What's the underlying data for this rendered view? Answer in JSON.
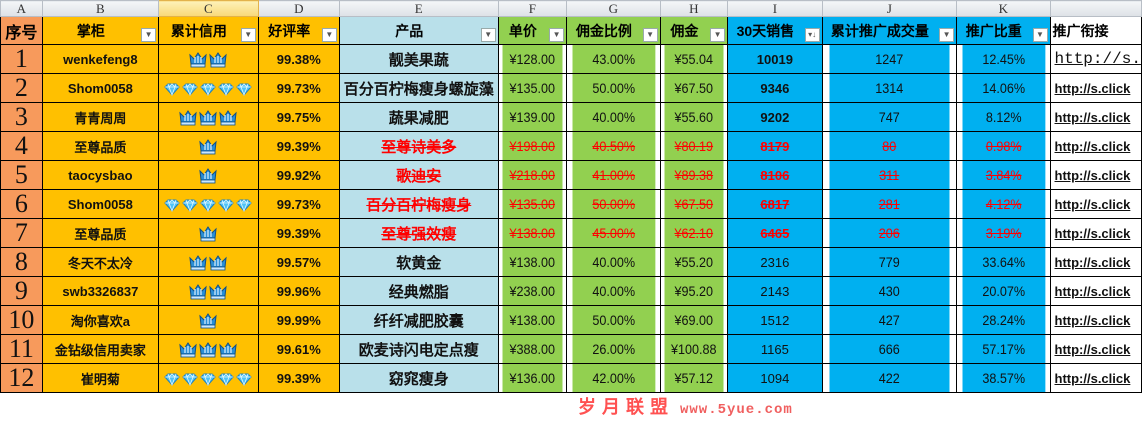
{
  "column_letters": [
    "A",
    "B",
    "C",
    "D",
    "E",
    "F",
    "G",
    "H",
    "I",
    "J",
    "K",
    ""
  ],
  "headers": [
    "序号",
    "掌柜",
    "累计信用",
    "好评率",
    "产品",
    "单价",
    "佣金比例",
    "佣金",
    "30天销售",
    "累计推广成交量",
    "推广比重",
    "推广衔接"
  ],
  "filter_icons": [
    "",
    "filter-dropdown",
    "filter-dropdown",
    "filter-dropdown",
    "filter-dropdown",
    "filter-dropdown",
    "filter-dropdown",
    "filter-dropdown",
    "sort-descending-filter",
    "filter-dropdown",
    "filter-dropdown",
    ""
  ],
  "colors": {
    "seq": "#f79a5c",
    "shop": "#ffc000",
    "product": "#b9e0ea",
    "price": "#92d050",
    "sales": "#00b0f0",
    "struck_text": "#ff0000",
    "link": "#0000ff"
  },
  "rows": [
    {
      "seq": "1",
      "shop": "wenkefeng8",
      "credit": {
        "icon": "crown",
        "count": 2
      },
      "rating": "99.38%",
      "product": "靓美果蔬",
      "price": "¥128.00",
      "rate": "43.00%",
      "commission": "¥55.04",
      "sales30": "10019",
      "promo": "1247",
      "share": "12.45%",
      "link": "http://s.",
      "struck": false
    },
    {
      "seq": "2",
      "shop": "Shom0058",
      "credit": {
        "icon": "diamond",
        "count": 5
      },
      "rating": "99.73%",
      "product": "百分百柠梅瘦身螺旋藻",
      "price": "¥135.00",
      "rate": "50.00%",
      "commission": "¥67.50",
      "sales30": "9346",
      "promo": "1314",
      "share": "14.06%",
      "link": "http://s.click",
      "struck": false
    },
    {
      "seq": "3",
      "shop": "青青周周",
      "credit": {
        "icon": "crown",
        "count": 3
      },
      "rating": "99.75%",
      "product": "蔬果减肥",
      "price": "¥139.00",
      "rate": "40.00%",
      "commission": "¥55.60",
      "sales30": "9202",
      "promo": "747",
      "share": "8.12%",
      "link": "http://s.click",
      "struck": false
    },
    {
      "seq": "4",
      "shop": "至尊品质",
      "credit": {
        "icon": "crown",
        "count": 1
      },
      "rating": "99.39%",
      "product": "至尊诗美多",
      "price": "¥198.00",
      "rate": "40.50%",
      "commission": "¥80.19",
      "sales30": "8179",
      "promo": "80",
      "share": "0.98%",
      "link": "http://s.click",
      "struck": true
    },
    {
      "seq": "5",
      "shop": "taocysbao",
      "credit": {
        "icon": "crown",
        "count": 1
      },
      "rating": "99.92%",
      "product": "歌迪安",
      "price": "¥218.00",
      "rate": "41.00%",
      "commission": "¥89.38",
      "sales30": "8106",
      "promo": "311",
      "share": "3.84%",
      "link": "http://s.click",
      "struck": true
    },
    {
      "seq": "6",
      "shop": "Shom0058",
      "credit": {
        "icon": "diamond",
        "count": 5
      },
      "rating": "99.73%",
      "product": "百分百柠梅瘦身",
      "price": "¥135.00",
      "rate": "50.00%",
      "commission": "¥67.50",
      "sales30": "6817",
      "promo": "281",
      "share": "4.12%",
      "link": "http://s.click",
      "struck": true
    },
    {
      "seq": "7",
      "shop": "至尊品质",
      "credit": {
        "icon": "crown",
        "count": 1
      },
      "rating": "99.39%",
      "product": "至尊强效瘦",
      "price": "¥138.00",
      "rate": "45.00%",
      "commission": "¥62.10",
      "sales30": "6465",
      "promo": "206",
      "share": "3.19%",
      "link": "http://s.click",
      "struck": true
    },
    {
      "seq": "8",
      "shop": "冬天不太冷",
      "credit": {
        "icon": "crown",
        "count": 2
      },
      "rating": "99.57%",
      "product": "软黄金",
      "price": "¥138.00",
      "rate": "40.00%",
      "commission": "¥55.20",
      "sales30": "2316",
      "promo": "779",
      "share": "33.64%",
      "link": "http://s.click",
      "struck": false
    },
    {
      "seq": "9",
      "shop": "swb3326837",
      "credit": {
        "icon": "crown",
        "count": 2
      },
      "rating": "99.96%",
      "product": "经典燃脂",
      "price": "¥238.00",
      "rate": "40.00%",
      "commission": "¥95.20",
      "sales30": "2143",
      "promo": "430",
      "share": "20.07%",
      "link": "http://s.click",
      "struck": false
    },
    {
      "seq": "10",
      "shop": "淘你喜欢a",
      "credit": {
        "icon": "crown",
        "count": 1
      },
      "rating": "99.99%",
      "product": "纤纤减肥胶囊",
      "price": "¥138.00",
      "rate": "50.00%",
      "commission": "¥69.00",
      "sales30": "1512",
      "promo": "427",
      "share": "28.24%",
      "link": "http://s.click",
      "struck": false
    },
    {
      "seq": "11",
      "shop": "金钻级信用卖家",
      "credit": {
        "icon": "crown",
        "count": 3
      },
      "rating": "99.61%",
      "product": "欧麦诗闪电定点瘦",
      "price": "¥388.00",
      "rate": "26.00%",
      "commission": "¥100.88",
      "sales30": "1165",
      "promo": "666",
      "share": "57.17%",
      "link": "http://s.click",
      "struck": false
    },
    {
      "seq": "12",
      "shop": "崔明菊",
      "credit": {
        "icon": "diamond",
        "count": 5
      },
      "rating": "99.39%",
      "product": "窈窕瘦身",
      "price": "¥136.00",
      "rate": "42.00%",
      "commission": "¥57.12",
      "sales30": "1094",
      "promo": "422",
      "share": "38.57%",
      "link": "http://s.click",
      "struck": false
    }
  ],
  "watermark": {
    "text": "岁月联盟",
    "url": "www.5yue.com"
  }
}
